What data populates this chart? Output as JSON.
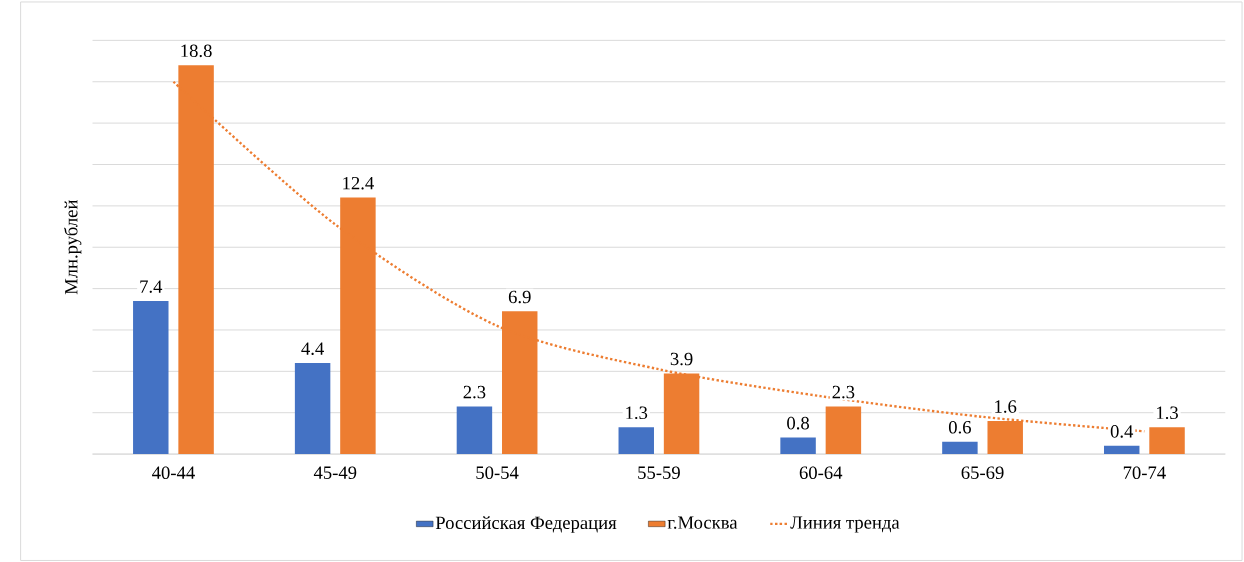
{
  "chart_data": {
    "type": "bar",
    "ylabel": "Млн.рублей",
    "categories": [
      "40-44",
      "45-49",
      "50-54",
      "55-59",
      "60-64",
      "65-69",
      "70-74"
    ],
    "series": [
      {
        "name": "Российская Федерация",
        "color": "#4472c4",
        "values": [
          7.4,
          4.4,
          2.3,
          1.3,
          0.8,
          0.6,
          0.4
        ],
        "value_labels": [
          "7.4",
          "4.4",
          "2.3",
          "1.3",
          "0.8",
          "0.6",
          "0.4"
        ]
      },
      {
        "name": "г.Москва",
        "color": "#ed7d31",
        "values": [
          18.8,
          12.4,
          6.9,
          3.9,
          2.3,
          1.6,
          1.3
        ],
        "value_labels": [
          "18.8",
          "12.4",
          "6.9",
          "3.9",
          "2.3",
          "1.6",
          "1.3"
        ]
      },
      {
        "name": "Линия тренда",
        "type": "line",
        "line_style": "dotted",
        "color": "#ed7d31",
        "x": [
          "40-44",
          "45-49",
          "50-54",
          "55-59",
          "60-64",
          "65-69",
          "70-74"
        ],
        "values": [
          18.0,
          11.1,
          6.2,
          4.1,
          2.8,
          1.8,
          1.1
        ]
      }
    ],
    "ylim": [
      0,
      20
    ],
    "yticks": [
      {
        "value": 0,
        "label": null
      },
      {
        "value": 2,
        "label": null
      },
      {
        "value": 4,
        "label": null
      },
      {
        "value": 6,
        "label": null
      },
      {
        "value": 8,
        "label": null
      },
      {
        "value": 10,
        "label": null
      },
      {
        "value": 12,
        "label": null
      },
      {
        "value": 14,
        "label": null
      },
      {
        "value": 16,
        "label": null
      },
      {
        "value": 18,
        "label": null
      },
      {
        "value": 20,
        "label": null
      }
    ],
    "grid": "y",
    "legend": "bottom",
    "tick_labels": "x"
  }
}
